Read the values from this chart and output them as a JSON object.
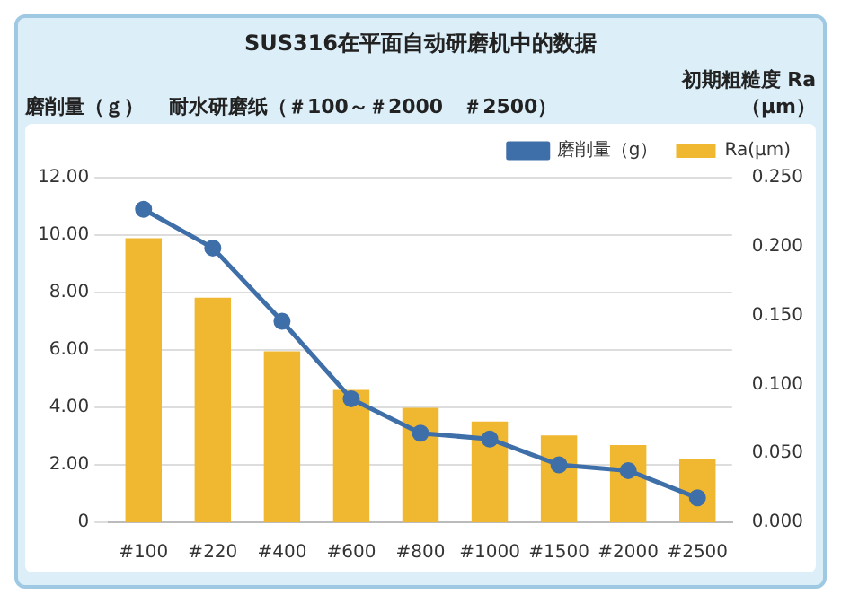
{
  "chart_data": {
    "type": "bar",
    "title": "SUS316在平面自动研磨机中的数据",
    "subtitle": "耐水研磨纸（＃100～＃2000　＃2500）",
    "ylabel": "磨削量（ｇ）",
    "y2label": "初期粗糙度 Ra（μm）",
    "categories": [
      "#100",
      "#220",
      "#400",
      "#600",
      "#800",
      "#1000",
      "#1500",
      "#2000",
      "#2500"
    ],
    "series": [
      {
        "name": "磨削量（g）",
        "type": "line",
        "color": "#3f6fa8",
        "values": [
          10.9,
          9.55,
          7.0,
          4.3,
          3.1,
          2.9,
          2.0,
          1.8,
          0.85
        ],
        "marker": "circle"
      },
      {
        "name": "Ra(μm)",
        "axis": "y2",
        "color": "#f0b731",
        "values": [
          0.206,
          0.163,
          0.124,
          0.096,
          0.083,
          0.073,
          0.063,
          0.056,
          0.046
        ]
      }
    ],
    "ylim": [
      0,
      12
    ],
    "yticks": [
      {
        "value": 0,
        "label": "0"
      },
      {
        "value": 2,
        "label": "2.00"
      },
      {
        "value": 4,
        "label": "4.00"
      },
      {
        "value": 6,
        "label": "6.00"
      },
      {
        "value": 8,
        "label": "8.00"
      },
      {
        "value": 10,
        "label": "10.00"
      },
      {
        "value": 12,
        "label": "12.00"
      }
    ],
    "y2lim": [
      0,
      0.25
    ],
    "y2ticks": [
      {
        "value": 0,
        "label": "0.000"
      },
      {
        "value": 0.05,
        "label": "0.050"
      },
      {
        "value": 0.1,
        "label": "0.100"
      },
      {
        "value": 0.15,
        "label": "0.150"
      },
      {
        "value": 0.2,
        "label": "0.200"
      },
      {
        "value": 0.25,
        "label": "0.250"
      }
    ],
    "grid": "y",
    "legend": "top right"
  }
}
